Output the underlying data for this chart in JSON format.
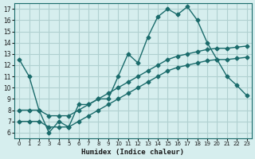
{
  "title": "",
  "xlabel": "Humidex (Indice chaleur)",
  "ylabel": "",
  "background_color": "#d6eeee",
  "grid_color": "#b0d0d0",
  "line_color": "#1a6b6b",
  "xlim": [
    -0.5,
    23.5
  ],
  "ylim": [
    5.5,
    17.5
  ],
  "xticks": [
    0,
    1,
    2,
    3,
    4,
    5,
    6,
    7,
    8,
    9,
    10,
    11,
    12,
    13,
    14,
    15,
    16,
    17,
    18,
    19,
    20,
    21,
    22,
    23
  ],
  "yticks": [
    6,
    7,
    8,
    9,
    10,
    11,
    12,
    13,
    14,
    15,
    16,
    17
  ],
  "line1_x": [
    0,
    1,
    2,
    3,
    4,
    5,
    6,
    7,
    8,
    9,
    10,
    11,
    12,
    13,
    14,
    15,
    16,
    17,
    18,
    19,
    20,
    21,
    22,
    23
  ],
  "line1_y": [
    12.5,
    11.0,
    8.0,
    6.0,
    7.0,
    6.5,
    8.5,
    8.5,
    9.0,
    9.0,
    11.0,
    13.0,
    12.2,
    14.5,
    16.3,
    17.0,
    16.5,
    17.2,
    16.0,
    14.0,
    12.5,
    11.0,
    10.2,
    9.3
  ],
  "line2_x": [
    0,
    1,
    2,
    3,
    4,
    5,
    6,
    7,
    8,
    9,
    10,
    11,
    12,
    13,
    14,
    15,
    16,
    17,
    18,
    19,
    20,
    21,
    22,
    23
  ],
  "line2_y": [
    8.0,
    8.0,
    8.0,
    7.5,
    7.5,
    7.5,
    8.0,
    8.5,
    9.0,
    9.5,
    10.0,
    10.5,
    11.0,
    11.5,
    12.0,
    12.5,
    12.8,
    13.0,
    13.2,
    13.4,
    13.5,
    13.5,
    13.6,
    13.7
  ],
  "line3_x": [
    0,
    1,
    2,
    3,
    4,
    5,
    6,
    7,
    8,
    9,
    10,
    11,
    12,
    13,
    14,
    15,
    16,
    17,
    18,
    19,
    20,
    21,
    22,
    23
  ],
  "line3_y": [
    7.0,
    7.0,
    7.0,
    6.5,
    6.5,
    6.5,
    7.0,
    7.5,
    8.0,
    8.5,
    9.0,
    9.5,
    10.0,
    10.5,
    11.0,
    11.5,
    11.8,
    12.0,
    12.2,
    12.4,
    12.5,
    12.5,
    12.6,
    12.7
  ]
}
